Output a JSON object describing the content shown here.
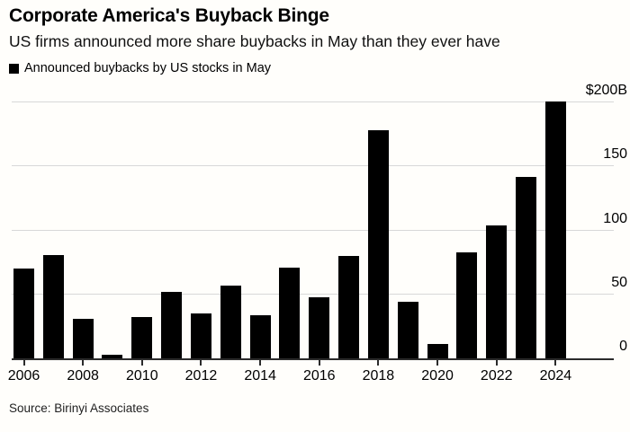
{
  "header": {
    "title": "Corporate America's Buyback Binge",
    "subtitle": "US firms announced more share buybacks in May than they ever have"
  },
  "legend": {
    "label": "Announced buybacks by US stocks in May",
    "swatch_color": "#000000"
  },
  "source": "Source: Birinyi Associates",
  "colors": {
    "bar": "#000000",
    "gridline": "#d8d8d8",
    "axis": "#2b2b2b",
    "text": "#000000",
    "background": "#fffefb"
  },
  "chart_data": {
    "type": "bar",
    "title": "Corporate America's Buyback Binge",
    "subtitle": "US firms announced more share buybacks in May than they ever have",
    "series_name": "Announced buybacks by US stocks in May",
    "categories": [
      2006,
      2007,
      2008,
      2009,
      2010,
      2011,
      2012,
      2013,
      2014,
      2015,
      2016,
      2017,
      2018,
      2019,
      2020,
      2021,
      2022,
      2023,
      2024
    ],
    "values": [
      70,
      81,
      31,
      3,
      32,
      52,
      35,
      57,
      34,
      71,
      48,
      80,
      178,
      44,
      11,
      83,
      104,
      142,
      201
    ],
    "unit": "billions of US dollars",
    "xlabel": "",
    "ylabel": "",
    "ylim": [
      0,
      200
    ],
    "yticks": [
      {
        "value": 0,
        "label": "0"
      },
      {
        "value": 50,
        "label": "50"
      },
      {
        "value": 100,
        "label": "100"
      },
      {
        "value": 150,
        "label": "150"
      },
      {
        "value": 200,
        "label": "$200B"
      }
    ],
    "xtick_labels": [
      "2006",
      "2008",
      "2010",
      "2012",
      "2014",
      "2016",
      "2018",
      "2020",
      "2022",
      "2024"
    ],
    "grid": "horizontal",
    "legend_position": "top-left",
    "ylabel_side": "right",
    "bar_color": "#000000"
  }
}
